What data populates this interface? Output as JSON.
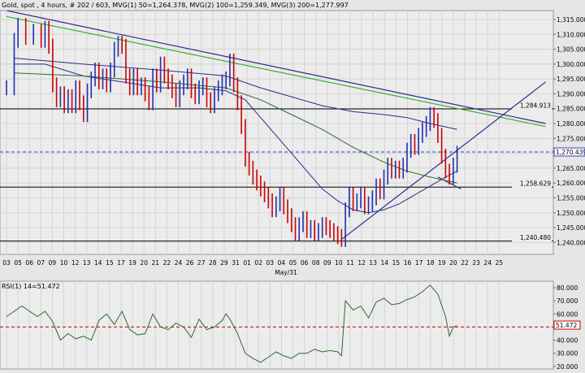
{
  "header": {
    "title": "Gold, spot , 4 hours, # 202 / 603, MVG(1) 50=1,264.378, MVG(2) 100=1,259.349, MVG(3) 200=1,277.997"
  },
  "chart_data": [
    {
      "type": "line",
      "role": "price",
      "title": "Gold, spot , 4 hours, # 202 / 603, MVG(1) 50=1,264.378, MVG(2) 100=1,259.349, MVG(3) 200=1,277.997",
      "ylim": [
        1236,
        1318
      ],
      "yticks": [
        1240,
        1245,
        1250,
        1255,
        1260,
        1265,
        1270,
        1275,
        1280,
        1285,
        1290,
        1295,
        1300,
        1305,
        1310,
        1315
      ],
      "ytick_labels": [
        "1,240.000",
        "1,245.000",
        "1,250.000",
        "1,255.000",
        "1,260.000",
        "1,265.000",
        "1,270.000",
        "1,275.000",
        "1,280.000",
        "1,285.000",
        "1,290.000",
        "1,295.000",
        "1,300.000",
        "1,305.000",
        "1,310.000",
        "1,315.000"
      ],
      "x_ticks": [
        "03",
        "05",
        "06",
        "07",
        "09",
        "10",
        "12",
        "13",
        "14",
        "15",
        "17",
        "19",
        "20",
        "21",
        "22",
        "24",
        "26",
        "27",
        "28",
        "29",
        "31",
        "01",
        "02",
        "03",
        "04",
        "05",
        "06",
        "08",
        "09",
        "10",
        "11",
        "12",
        "13",
        "14",
        "15",
        "16",
        "17",
        "18",
        "19",
        "20",
        "22",
        "23",
        "24",
        "25"
      ],
      "x_sublabel": "May/31",
      "series": [
        {
          "role": "close",
          "color": "#cc0000",
          "values": [
            [
              0,
              1292
            ],
            [
              2,
              1308
            ],
            [
              3,
              1313
            ],
            [
              5,
              1309
            ],
            [
              7,
              1311
            ],
            [
              9,
              1308
            ],
            [
              10,
              1312
            ],
            [
              11,
              1306
            ],
            [
              12,
              1293
            ],
            [
              13,
              1288
            ],
            [
              14,
              1290
            ],
            [
              15,
              1286
            ],
            [
              16,
              1289
            ],
            [
              17,
              1286
            ],
            [
              18,
              1292
            ],
            [
              19,
              1287
            ],
            [
              20,
              1283
            ],
            [
              21,
              1291
            ],
            [
              22,
              1295
            ],
            [
              23,
              1298
            ],
            [
              24,
              1294
            ],
            [
              25,
              1296
            ],
            [
              26,
              1293
            ],
            [
              27,
              1298
            ],
            [
              28,
              1305
            ],
            [
              29,
              1307
            ],
            [
              30,
              1306
            ],
            [
              31,
              1296
            ],
            [
              32,
              1292
            ],
            [
              33,
              1296
            ],
            [
              34,
              1292
            ],
            [
              35,
              1293
            ],
            [
              36,
              1290
            ],
            [
              37,
              1287
            ],
            [
              38,
              1296
            ],
            [
              39,
              1293
            ],
            [
              40,
              1300
            ],
            [
              41,
              1296
            ],
            [
              42,
              1294
            ],
            [
              43,
              1291
            ],
            [
              44,
              1288
            ],
            [
              45,
              1292
            ],
            [
              46,
              1294
            ],
            [
              47,
              1296
            ],
            [
              48,
              1291
            ],
            [
              49,
              1289
            ],
            [
              50,
              1292
            ],
            [
              51,
              1293
            ],
            [
              52,
              1288
            ],
            [
              53,
              1286
            ],
            [
              54,
              1290
            ],
            [
              55,
              1292
            ],
            [
              56,
              1294
            ],
            [
              57,
              1295
            ],
            [
              58,
              1301
            ],
            [
              59,
              1293
            ],
            [
              60,
              1287
            ],
            [
              61,
              1279
            ],
            [
              62,
              1268
            ],
            [
              63,
              1265
            ],
            [
              64,
              1262
            ],
            [
              65,
              1260
            ],
            [
              66,
              1258
            ],
            [
              67,
              1256
            ],
            [
              68,
              1254
            ],
            [
              69,
              1251
            ],
            [
              70,
              1253
            ],
            [
              71,
              1256
            ],
            [
              72,
              1252
            ],
            [
              73,
              1249
            ],
            [
              74,
              1246
            ],
            [
              75,
              1243
            ],
            [
              76,
              1246
            ],
            [
              77,
              1248
            ],
            [
              78,
              1244
            ],
            [
              79,
              1245
            ],
            [
              80,
              1243
            ],
            [
              81,
              1244
            ],
            [
              82,
              1246
            ],
            [
              83,
              1245
            ],
            [
              84,
              1244
            ],
            [
              85,
              1243
            ],
            [
              86,
              1242
            ],
            [
              87,
              1241
            ],
            [
              88,
              1251
            ],
            [
              89,
              1256
            ],
            [
              90,
              1253
            ],
            [
              91,
              1254
            ],
            [
              92,
              1256
            ],
            [
              93,
              1252
            ],
            [
              94,
              1253
            ],
            [
              95,
              1255
            ],
            [
              96,
              1259
            ],
            [
              97,
              1257
            ],
            [
              98,
              1262
            ],
            [
              99,
              1266
            ],
            [
              100,
              1264
            ],
            [
              101,
              1265
            ],
            [
              102,
              1264
            ],
            [
              103,
              1266
            ],
            [
              104,
              1271
            ],
            [
              105,
              1274
            ],
            [
              106,
              1272
            ],
            [
              107,
              1276
            ],
            [
              108,
              1278
            ],
            [
              109,
              1280
            ],
            [
              110,
              1283
            ],
            [
              111,
              1281
            ],
            [
              112,
              1276
            ],
            [
              113,
              1269
            ],
            [
              114,
              1264
            ],
            [
              115,
              1262
            ],
            [
              116,
              1266
            ],
            [
              117,
              1270
            ]
          ]
        },
        {
          "name": "MVG(1) 50=1,264.378",
          "color": "#2c2c8c",
          "values": [
            [
              2,
              1300
            ],
            [
              10,
              1300
            ],
            [
              20,
              1296
            ],
            [
              30,
              1294
            ],
            [
              40,
              1292
            ],
            [
              50,
              1292
            ],
            [
              57,
              1291
            ],
            [
              62,
              1288
            ],
            [
              66,
              1282
            ],
            [
              70,
              1276
            ],
            [
              74,
              1270
            ],
            [
              78,
              1264
            ],
            [
              82,
              1258
            ],
            [
              86,
              1254
            ],
            [
              90,
              1251
            ],
            [
              94,
              1250
            ],
            [
              98,
              1251
            ],
            [
              102,
              1253
            ],
            [
              106,
              1256
            ],
            [
              110,
              1259
            ],
            [
              114,
              1262
            ],
            [
              117,
              1264
            ]
          ]
        },
        {
          "name": "MVG(2) 100=1,259.349",
          "color": "#2d6a2d",
          "values": [
            [
              2,
              1297
            ],
            [
              20,
              1296
            ],
            [
              40,
              1294
            ],
            [
              57,
              1292
            ],
            [
              66,
              1288
            ],
            [
              74,
              1283
            ],
            [
              82,
              1278
            ],
            [
              90,
              1272
            ],
            [
              98,
              1267
            ],
            [
              104,
              1264
            ],
            [
              110,
              1262
            ],
            [
              117,
              1260
            ]
          ]
        },
        {
          "name": "MVG(3) 200=1,277.997",
          "color": "#2c2c8c",
          "values": [
            [
              2,
              1302
            ],
            [
              20,
              1300
            ],
            [
              40,
              1298
            ],
            [
              57,
              1296
            ],
            [
              66,
              1292
            ],
            [
              74,
              1289
            ],
            [
              82,
              1286
            ],
            [
              90,
              1284
            ],
            [
              98,
              1283
            ],
            [
              104,
              1282
            ],
            [
              110,
              1280
            ],
            [
              117,
              1278
            ]
          ]
        }
      ],
      "horizontal_levels": [
        {
          "label": "1,284.913",
          "value": 1284.913
        },
        {
          "label": "1,270.439",
          "value": 1270.439
        },
        {
          "label": "1,258.629",
          "value": 1258.629
        },
        {
          "label": "1,240.480",
          "value": 1240.48
        }
      ],
      "trendlines": [
        {
          "role": "down-blue",
          "from": [
            0,
            1318
          ],
          "to": [
            140,
            1280
          ],
          "color": "#2c2c8c"
        },
        {
          "role": "down-green",
          "from": [
            0,
            1316
          ],
          "to": [
            140,
            1279
          ],
          "color": "#36b236"
        },
        {
          "role": "up",
          "from": [
            87,
            1241
          ],
          "to": [
            140,
            1294
          ],
          "color": "#2c2c8c"
        },
        {
          "role": "sup",
          "from": [
            112,
            1262
          ],
          "to": [
            118,
            1258
          ],
          "color": "#2c2c8c"
        }
      ],
      "current_label": "1,270.439"
    },
    {
      "type": "line",
      "role": "rsi",
      "title": "RSI(1) 14=51.472",
      "ylim": [
        18,
        85
      ],
      "yticks": [
        20,
        30,
        40,
        50,
        60,
        70,
        80
      ],
      "ytick_labels": [
        "20.000",
        "30.000",
        "40.000",
        "50.000",
        "60.000",
        "70.000",
        "80.000"
      ],
      "levels": [
        50
      ],
      "current_label": "51.472",
      "series": [
        {
          "name": "RSI(1) 14=51.472",
          "color": "#2d6a2d",
          "values": [
            [
              0,
              58
            ],
            [
              4,
              66
            ],
            [
              8,
              58
            ],
            [
              10,
              62
            ],
            [
              12,
              54
            ],
            [
              14,
              40
            ],
            [
              16,
              45
            ],
            [
              18,
              41
            ],
            [
              20,
              43
            ],
            [
              22,
              40
            ],
            [
              24,
              55
            ],
            [
              26,
              60
            ],
            [
              28,
              52
            ],
            [
              30,
              62
            ],
            [
              32,
              48
            ],
            [
              34,
              44
            ],
            [
              36,
              45
            ],
            [
              38,
              60
            ],
            [
              40,
              50
            ],
            [
              42,
              48
            ],
            [
              44,
              53
            ],
            [
              46,
              50
            ],
            [
              48,
              42
            ],
            [
              50,
              56
            ],
            [
              52,
              48
            ],
            [
              54,
              50
            ],
            [
              56,
              55
            ],
            [
              57,
              60
            ],
            [
              58,
              56
            ],
            [
              60,
              45
            ],
            [
              62,
              30
            ],
            [
              64,
              26
            ],
            [
              66,
              23
            ],
            [
              68,
              27
            ],
            [
              70,
              31
            ],
            [
              72,
              28
            ],
            [
              74,
              26
            ],
            [
              76,
              30
            ],
            [
              78,
              30
            ],
            [
              80,
              33
            ],
            [
              82,
              31
            ],
            [
              84,
              32
            ],
            [
              86,
              31
            ],
            [
              87,
              28
            ],
            [
              88,
              70
            ],
            [
              90,
              63
            ],
            [
              92,
              66
            ],
            [
              94,
              57
            ],
            [
              96,
              69
            ],
            [
              98,
              72
            ],
            [
              100,
              67
            ],
            [
              102,
              68
            ],
            [
              104,
              71
            ],
            [
              106,
              73
            ],
            [
              108,
              77
            ],
            [
              110,
              82
            ],
            [
              112,
              75
            ],
            [
              114,
              58
            ],
            [
              115,
              43
            ],
            [
              116,
              50
            ],
            [
              117,
              51
            ]
          ]
        }
      ]
    }
  ]
}
